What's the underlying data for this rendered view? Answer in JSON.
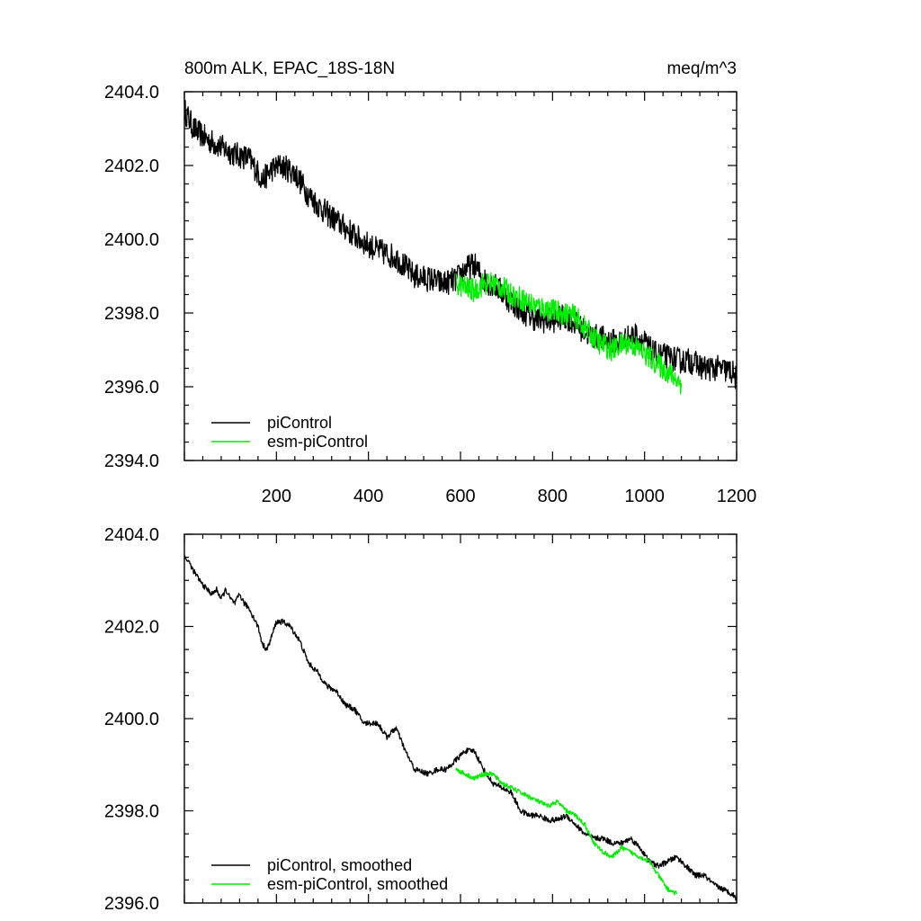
{
  "chart_data": [
    {
      "type": "line",
      "title_left": "800m ALK, EPAC_18S-18N",
      "title_right": "meq/m^3",
      "xlabel": "",
      "ylabel": "",
      "xlim": [
        0,
        1200
      ],
      "ylim": [
        2394.0,
        2404.0
      ],
      "x_ticks": [
        200,
        400,
        600,
        800,
        1000,
        1200
      ],
      "y_ticks": [
        "2394.0",
        "2396.0",
        "2398.0",
        "2400.0",
        "2402.0",
        "2404.0"
      ],
      "legend_position": "bottom-left",
      "series": [
        {
          "name": "piControl",
          "color": "#000000",
          "noise": 0.35,
          "points": [
            [
              0,
              2403.5
            ],
            [
              20,
              2403.0
            ],
            [
              50,
              2402.7
            ],
            [
              80,
              2402.5
            ],
            [
              110,
              2402.3
            ],
            [
              140,
              2402.2
            ],
            [
              170,
              2401.6
            ],
            [
              190,
              2401.9
            ],
            [
              210,
              2402.0
            ],
            [
              240,
              2401.8
            ],
            [
              270,
              2401.2
            ],
            [
              300,
              2400.8
            ],
            [
              340,
              2400.4
            ],
            [
              380,
              2400.0
            ],
            [
              420,
              2399.7
            ],
            [
              460,
              2399.5
            ],
            [
              500,
              2399.0
            ],
            [
              540,
              2398.9
            ],
            [
              560,
              2398.8
            ],
            [
              590,
              2398.9
            ],
            [
              610,
              2399.2
            ],
            [
              630,
              2399.3
            ],
            [
              650,
              2398.9
            ],
            [
              680,
              2398.7
            ],
            [
              710,
              2398.3
            ],
            [
              740,
              2398.0
            ],
            [
              770,
              2397.8
            ],
            [
              800,
              2397.8
            ],
            [
              830,
              2397.9
            ],
            [
              860,
              2397.6
            ],
            [
              880,
              2397.4
            ],
            [
              910,
              2397.3
            ],
            [
              940,
              2397.2
            ],
            [
              960,
              2397.3
            ],
            [
              980,
              2397.4
            ],
            [
              1000,
              2397.2
            ],
            [
              1020,
              2396.9
            ],
            [
              1050,
              2396.8
            ],
            [
              1080,
              2396.7
            ],
            [
              1100,
              2396.7
            ],
            [
              1130,
              2396.5
            ],
            [
              1160,
              2396.5
            ],
            [
              1190,
              2396.4
            ],
            [
              1200,
              2396.2
            ]
          ]
        },
        {
          "name": "esm-piControl",
          "color": "#00ee00",
          "noise": 0.32,
          "points": [
            [
              590,
              2398.8
            ],
            [
              610,
              2398.7
            ],
            [
              630,
              2398.6
            ],
            [
              650,
              2398.8
            ],
            [
              670,
              2398.8
            ],
            [
              690,
              2398.7
            ],
            [
              710,
              2398.5
            ],
            [
              730,
              2398.4
            ],
            [
              760,
              2398.2
            ],
            [
              790,
              2398.1
            ],
            [
              820,
              2398.0
            ],
            [
              850,
              2397.9
            ],
            [
              870,
              2397.6
            ],
            [
              900,
              2397.2
            ],
            [
              930,
              2397.0
            ],
            [
              960,
              2397.2
            ],
            [
              980,
              2397.1
            ],
            [
              1000,
              2396.9
            ],
            [
              1020,
              2396.7
            ],
            [
              1040,
              2396.5
            ],
            [
              1060,
              2396.3
            ],
            [
              1080,
              2396.1
            ]
          ]
        }
      ]
    },
    {
      "type": "line",
      "title_left": "",
      "title_right": "",
      "xlabel": "",
      "ylabel": "",
      "xlim": [
        0,
        1200
      ],
      "ylim": [
        2396.0,
        2404.0
      ],
      "y_ticks": [
        "2396.0",
        "2398.0",
        "2400.0",
        "2402.0",
        "2404.0"
      ],
      "legend_position": "bottom-left",
      "series": [
        {
          "name": "piControl, smoothed",
          "color": "#000000",
          "noise": 0.06,
          "points": [
            [
              0,
              2403.5
            ],
            [
              10,
              2403.4
            ],
            [
              20,
              2403.2
            ],
            [
              40,
              2402.9
            ],
            [
              60,
              2402.7
            ],
            [
              70,
              2402.8
            ],
            [
              80,
              2402.6
            ],
            [
              90,
              2402.8
            ],
            [
              100,
              2402.6
            ],
            [
              110,
              2402.5
            ],
            [
              120,
              2402.7
            ],
            [
              130,
              2402.5
            ],
            [
              140,
              2402.4
            ],
            [
              150,
              2402.2
            ],
            [
              160,
              2402.0
            ],
            [
              170,
              2401.6
            ],
            [
              180,
              2401.5
            ],
            [
              190,
              2401.8
            ],
            [
              200,
              2402.1
            ],
            [
              215,
              2402.1
            ],
            [
              230,
              2402.0
            ],
            [
              250,
              2401.7
            ],
            [
              270,
              2401.2
            ],
            [
              290,
              2401.0
            ],
            [
              310,
              2400.7
            ],
            [
              330,
              2400.6
            ],
            [
              350,
              2400.3
            ],
            [
              370,
              2400.2
            ],
            [
              390,
              2399.9
            ],
            [
              420,
              2399.9
            ],
            [
              440,
              2399.6
            ],
            [
              460,
              2399.8
            ],
            [
              480,
              2399.3
            ],
            [
              500,
              2398.9
            ],
            [
              530,
              2398.8
            ],
            [
              550,
              2398.9
            ],
            [
              570,
              2398.9
            ],
            [
              590,
              2399.1
            ],
            [
              610,
              2399.3
            ],
            [
              630,
              2399.3
            ],
            [
              650,
              2398.9
            ],
            [
              670,
              2398.6
            ],
            [
              690,
              2398.5
            ],
            [
              710,
              2398.4
            ],
            [
              730,
              2398.0
            ],
            [
              750,
              2397.9
            ],
            [
              770,
              2397.9
            ],
            [
              790,
              2397.8
            ],
            [
              810,
              2397.8
            ],
            [
              830,
              2397.9
            ],
            [
              850,
              2397.7
            ],
            [
              870,
              2397.5
            ],
            [
              890,
              2397.4
            ],
            [
              910,
              2397.4
            ],
            [
              930,
              2397.3
            ],
            [
              950,
              2397.3
            ],
            [
              970,
              2397.4
            ],
            [
              990,
              2397.2
            ],
            [
              1010,
              2396.9
            ],
            [
              1030,
              2396.8
            ],
            [
              1050,
              2396.9
            ],
            [
              1070,
              2397.0
            ],
            [
              1090,
              2396.8
            ],
            [
              1110,
              2396.6
            ],
            [
              1130,
              2396.6
            ],
            [
              1150,
              2396.4
            ],
            [
              1170,
              2396.3
            ],
            [
              1190,
              2396.2
            ],
            [
              1200,
              2396.1
            ]
          ]
        },
        {
          "name": "esm-piControl, smoothed",
          "color": "#00ee00",
          "noise": 0.05,
          "points": [
            [
              590,
              2398.9
            ],
            [
              610,
              2398.8
            ],
            [
              630,
              2398.7
            ],
            [
              650,
              2398.8
            ],
            [
              670,
              2398.8
            ],
            [
              690,
              2398.6
            ],
            [
              710,
              2398.5
            ],
            [
              730,
              2398.4
            ],
            [
              750,
              2398.3
            ],
            [
              770,
              2398.2
            ],
            [
              790,
              2398.1
            ],
            [
              810,
              2398.2
            ],
            [
              830,
              2398.0
            ],
            [
              850,
              2397.9
            ],
            [
              870,
              2397.7
            ],
            [
              890,
              2397.3
            ],
            [
              910,
              2397.1
            ],
            [
              930,
              2397.0
            ],
            [
              950,
              2397.2
            ],
            [
              970,
              2397.1
            ],
            [
              990,
              2397.0
            ],
            [
              1010,
              2396.9
            ],
            [
              1030,
              2396.6
            ],
            [
              1050,
              2396.3
            ],
            [
              1070,
              2396.2
            ]
          ]
        }
      ]
    }
  ]
}
